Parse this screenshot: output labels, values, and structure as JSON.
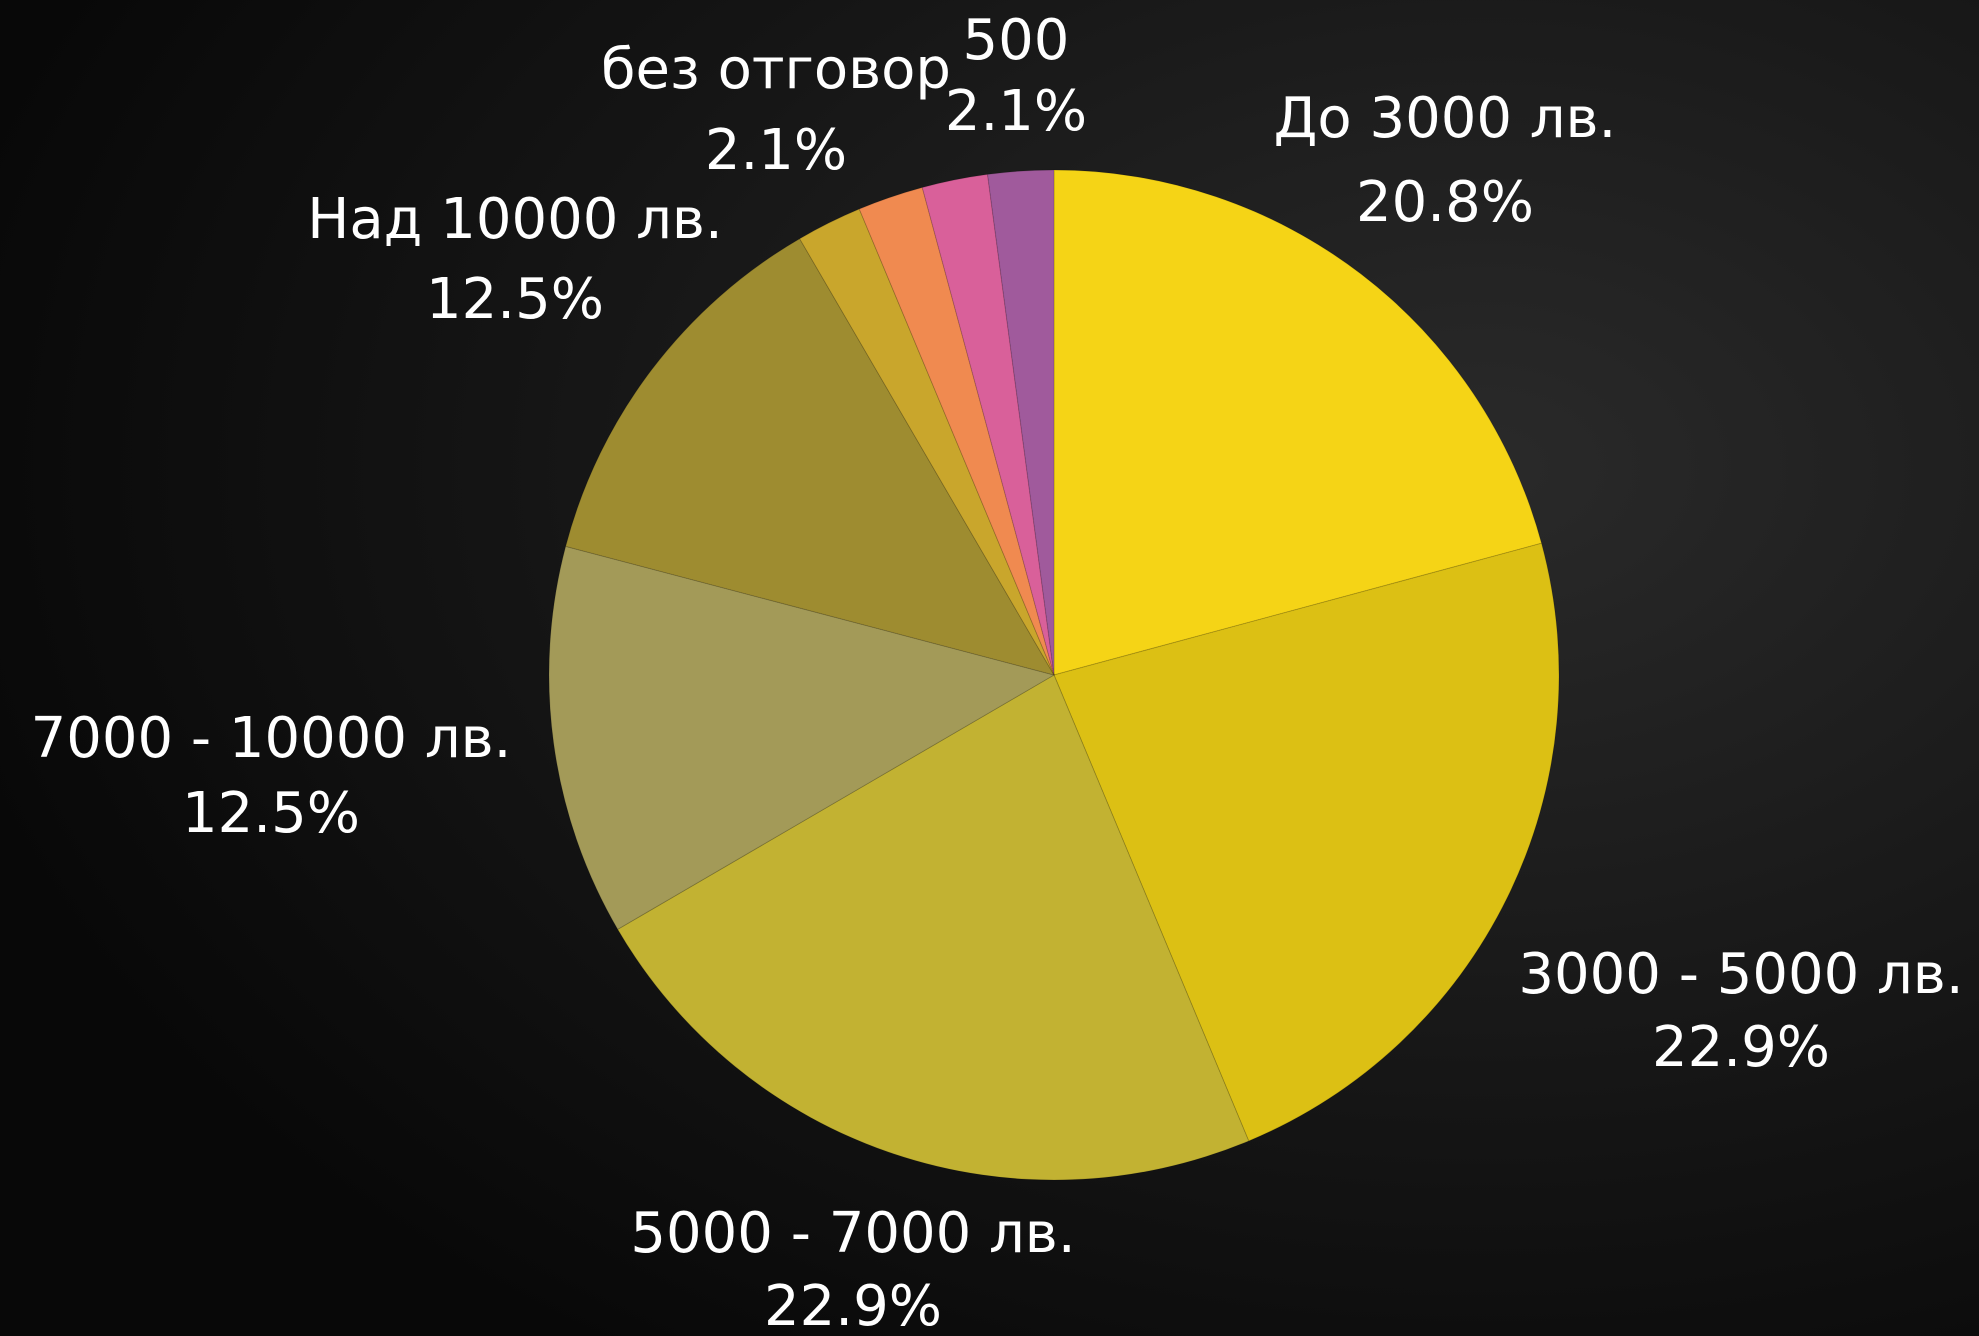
{
  "chart_data": {
    "type": "pie",
    "categories": [
      "До 3000 лв.",
      "3000 - 5000 лв.",
      "5000 - 7000 лв.",
      "7000 - 10000 лв.",
      "Над 10000 лв.",
      null,
      null,
      "без отговор",
      "500"
    ],
    "values": [
      20.8,
      22.9,
      22.9,
      12.5,
      12.5,
      2.1,
      2.1,
      2.1,
      2.1
    ],
    "value_labels": [
      "20.8%",
      "22.9%",
      "22.9%",
      "12.5%",
      "12.5%",
      null,
      null,
      "2.1%",
      "2.1%"
    ],
    "colors": [
      "#f5d416",
      "#dcc014",
      "#c2b232",
      "#a39a58",
      "#9e8c30",
      "#c9a62c",
      "#f08a50",
      "#d9609a",
      "#a05a9c"
    ]
  }
}
